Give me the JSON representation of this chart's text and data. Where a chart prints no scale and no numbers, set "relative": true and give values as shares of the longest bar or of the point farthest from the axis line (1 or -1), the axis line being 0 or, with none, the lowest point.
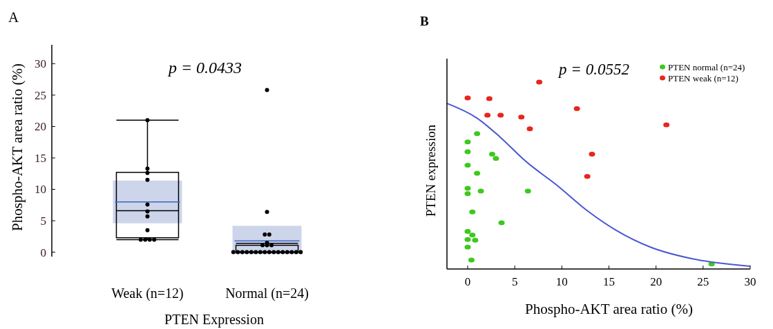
{
  "chart_data": [
    {
      "type": "box",
      "annotations": [
        "A",
        "p = 0.0433"
      ],
      "xlabel": "PTEN Expression",
      "ylabel": "Phospho-AKT area ratio (%)",
      "categories": [
        "Weak (n=12)",
        "Normal (n=24)"
      ],
      "ylim": [
        -0.7,
        33
      ],
      "yticks": [
        0,
        5,
        10,
        15,
        20,
        25,
        30
      ],
      "series": [
        {
          "type": "bar",
          "color": "#cdd5ea",
          "base": [
            4.6,
            -0.3
          ],
          "values": [
            6.8,
            4.5
          ]
        },
        {
          "type": "box",
          "color": "#000000",
          "boxes": [
            {
              "low": 2,
              "q1": 2.3,
              "median": 6.6,
              "q3": 12.7,
              "high": 21,
              "mean": 8.0
            },
            {
              "low": 0,
              "q1": 0,
              "median": 0,
              "q3": 1.1,
              "high": 1.4,
              "mean": 1.8
            }
          ]
        },
        {
          "type": "scatter",
          "color": "#000000",
          "x": [
            "Weak (n=12)",
            "Weak (n=12)",
            "Weak (n=12)",
            "Weak (n=12)",
            "Weak (n=12)",
            "Weak (n=12)",
            "Weak (n=12)",
            "Weak (n=12)",
            "Weak (n=12)",
            "Weak (n=12)",
            "Weak (n=12)",
            "Weak (n=12)",
            "Normal (n=24)",
            "Normal (n=24)",
            "Normal (n=24)",
            "Normal (n=24)",
            "Normal (n=24)",
            "Normal (n=24)",
            "Normal (n=24)",
            "Normal (n=24)",
            "Normal (n=24)",
            "Normal (n=24)",
            "Normal (n=24)",
            "Normal (n=24)",
            "Normal (n=24)",
            "Normal (n=24)",
            "Normal (n=24)",
            "Normal (n=24)",
            "Normal (n=24)",
            "Normal (n=24)",
            "Normal (n=24)",
            "Normal (n=24)",
            "Normal (n=24)",
            "Normal (n=24)",
            "Normal (n=24)",
            "Normal (n=24)"
          ],
          "values": [
            21,
            13.3,
            12.6,
            11.5,
            7.6,
            6.5,
            5.7,
            3.5,
            2,
            2,
            2,
            2,
            25.8,
            6.4,
            2.8,
            2.8,
            1.5,
            1.1,
            1.1,
            1.1,
            0,
            0,
            0,
            0,
            0,
            0,
            0,
            0,
            0,
            0,
            0,
            0,
            0,
            0,
            0,
            0
          ]
        }
      ]
    },
    {
      "type": "scatter",
      "annotations": [
        "B",
        "p = 0.0552"
      ],
      "xlabel": "Phospho-AKT area ratio (%)",
      "ylabel": "PTEN expression",
      "relative": true,
      "xlim": [
        -2.2,
        30
      ],
      "xticks": [
        0,
        5,
        10,
        15,
        20,
        25,
        30
      ],
      "legend": "top right",
      "marker": "circle",
      "series": [
        {
          "name": "PTEN normal (n=24)",
          "color": "#3ec81e",
          "x": [
            1.0,
            0,
            0,
            0,
            2.6,
            3.0,
            1.0,
            0,
            0,
            1.4,
            6.4,
            0.5,
            3.6,
            0,
            0.5,
            null,
            0,
            0.8,
            0,
            0.4,
            25.9
          ],
          "values": [
            0.724,
            0.68,
            0.627,
            0.555,
            0.614,
            0.591,
            0.512,
            0.432,
            0.403,
            0.417,
            0.417,
            0.305,
            0.247,
            0.201,
            0.182,
            null,
            0.158,
            0.154,
            0.117,
            0.048,
            0.027
          ]
        },
        {
          "name": "PTEN weak (n=12)",
          "color": "#e8261c",
          "x": [
            0,
            2.3,
            7.6,
            2.1,
            3.5,
            5.7,
            6.6,
            11.6,
            21.1,
            13.2,
            12.7
          ],
          "values": [
            0.915,
            0.911,
            1.0,
            0.823,
            0.823,
            0.813,
            0.75,
            0.858,
            0.771,
            0.614,
            0.495
          ]
        },
        {
          "type": "line",
          "color": "#4a56d0",
          "marker": "none",
          "x": [
            -2.2,
            1.0,
            3.4,
            6.1,
            9.6,
            12.8,
            15.7,
            19.4,
            23.8,
            30
          ],
          "values": [
            0.886,
            0.807,
            0.708,
            0.579,
            0.443,
            0.308,
            0.209,
            0.117,
            0.055,
            0.015
          ]
        }
      ]
    }
  ]
}
